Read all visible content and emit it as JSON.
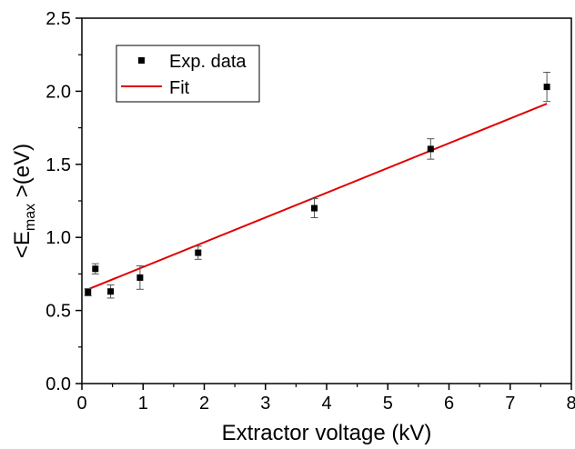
{
  "chart_data": {
    "type": "scatter",
    "xlabel": "Extractor voltage (kV)",
    "ylabel": {
      "prefix": "<E",
      "subscript": "max",
      "suffix": " >(eV)"
    },
    "xlim": [
      0,
      8
    ],
    "ylim": [
      0,
      2.5
    ],
    "x_ticks": [
      "0",
      "1",
      "2",
      "3",
      "4",
      "5",
      "6",
      "7",
      "8"
    ],
    "y_ticks": [
      "0.0",
      "0.5",
      "1.0",
      "1.5",
      "2.0",
      "2.5"
    ],
    "grid": false,
    "legend_position": "top-left",
    "series": [
      {
        "name": "Exp. data",
        "kind": "points-with-error-bars",
        "color": "#000000",
        "marker": "square",
        "x": [
          0.1,
          0.22,
          0.47,
          0.95,
          1.9,
          3.8,
          5.7,
          7.6
        ],
        "y": [
          0.625,
          0.785,
          0.63,
          0.725,
          0.895,
          1.2,
          1.605,
          2.03
        ],
        "yerr": [
          0.025,
          0.035,
          0.045,
          0.08,
          0.045,
          0.065,
          0.07,
          0.1
        ]
      },
      {
        "name": "Fit",
        "kind": "line",
        "color": "#e00000",
        "x": [
          0.1,
          7.6
        ],
        "y": [
          0.645,
          1.915
        ]
      }
    ]
  }
}
